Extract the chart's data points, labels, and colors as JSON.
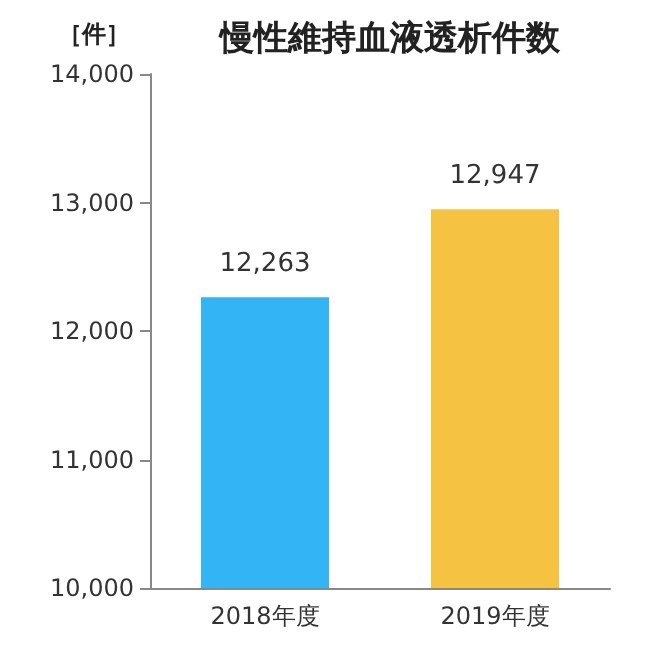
{
  "chart_data": {
    "type": "bar",
    "title": "慢性維持血液透析件数",
    "ylabel": "［件］",
    "categories": [
      "2018年度",
      "2019年度"
    ],
    "values": [
      12263,
      12947
    ],
    "colors": [
      "#33b5f5",
      "#f5c242"
    ],
    "ylim": [
      10000,
      14000
    ],
    "yticks": [
      {
        "value": 10000,
        "label": "10,000"
      },
      {
        "value": 11000,
        "label": "11,000"
      },
      {
        "value": 12000,
        "label": "12,000"
      },
      {
        "value": 13000,
        "label": "13,000"
      },
      {
        "value": 14000,
        "label": "14,000"
      }
    ],
    "value_labels": [
      "12,263",
      "12,947"
    ],
    "grid": false
  }
}
